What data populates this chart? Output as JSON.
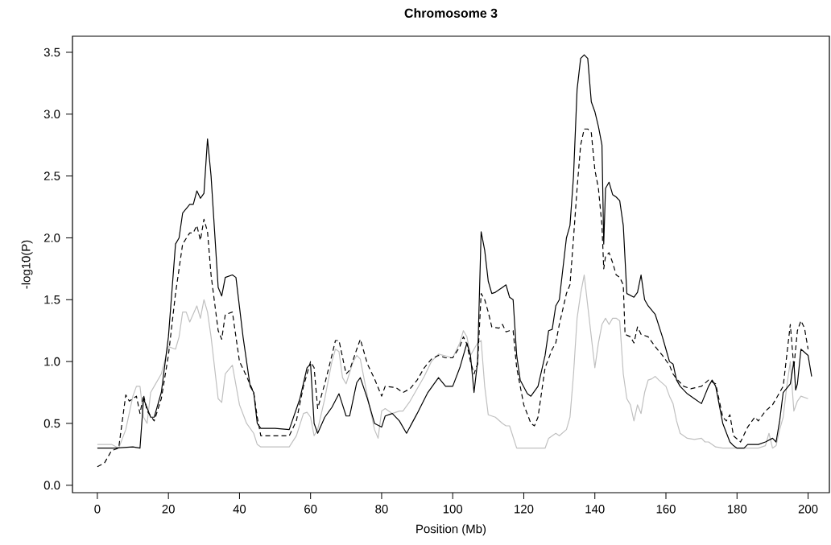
{
  "chart_data": {
    "type": "line",
    "title": "Chromosome 3",
    "xlabel": "Position (Mb)",
    "ylabel": "-log10(P)",
    "xlim": [
      -7,
      206
    ],
    "ylim": [
      -0.06,
      3.63
    ],
    "xticks": [
      0,
      20,
      40,
      60,
      80,
      100,
      120,
      140,
      160,
      180,
      200
    ],
    "yticks": [
      {
        "value": 0,
        "label": "0.0"
      },
      0.5,
      {
        "value": 1,
        "label": "1.0"
      },
      1.5,
      {
        "value": 2,
        "label": "2.0"
      },
      2.5,
      {
        "value": 3,
        "label": "3.0"
      },
      3.5
    ],
    "grid": false,
    "marker": "none",
    "series": [
      {
        "color": "#c0c0c0",
        "line_style": "solid",
        "x": [
          0,
          4,
          6,
          8,
          10,
          11,
          12,
          13,
          14,
          15,
          16,
          18,
          20,
          22,
          23,
          24,
          25,
          26,
          28,
          29,
          30,
          31,
          32,
          34,
          35,
          36,
          38,
          40,
          42,
          44,
          45,
          46,
          50,
          54,
          56,
          58,
          59,
          60,
          61,
          62,
          64,
          66,
          67,
          68,
          69,
          70,
          72,
          73,
          74,
          76,
          78,
          79,
          80,
          81,
          83,
          85,
          86,
          88,
          92,
          94,
          96,
          100,
          102,
          103,
          104,
          105,
          106,
          107,
          108,
          109,
          110,
          112,
          114,
          115,
          116,
          118,
          122,
          126,
          127,
          129,
          130,
          132,
          133,
          134,
          135,
          136,
          137,
          138,
          139,
          140,
          141,
          142,
          143,
          144,
          145,
          146,
          147,
          148,
          149,
          150,
          151,
          152,
          153,
          154,
          155,
          156,
          157,
          158,
          160,
          161,
          162,
          163,
          164,
          166,
          168,
          170,
          171,
          172,
          174,
          176,
          180,
          184,
          186,
          188,
          189,
          190,
          191,
          192,
          193,
          194,
          195,
          196,
          197,
          198,
          200
        ],
        "values": [
          0.33,
          0.33,
          0.3,
          0.45,
          0.72,
          0.8,
          0.8,
          0.55,
          0.5,
          0.75,
          0.8,
          0.9,
          1.12,
          1.1,
          1.2,
          1.4,
          1.4,
          1.32,
          1.45,
          1.35,
          1.5,
          1.4,
          1.2,
          0.7,
          0.67,
          0.9,
          0.97,
          0.65,
          0.5,
          0.42,
          0.33,
          0.31,
          0.31,
          0.31,
          0.4,
          0.58,
          0.59,
          0.55,
          0.4,
          0.45,
          0.7,
          1.0,
          1.1,
          1.08,
          0.87,
          0.82,
          1.0,
          1.05,
          1.02,
          0.72,
          0.45,
          0.38,
          0.6,
          0.62,
          0.58,
          0.6,
          0.6,
          0.68,
          0.88,
          1.0,
          1.06,
          1.03,
          1.15,
          1.25,
          1.2,
          1.05,
          1.1,
          1.15,
          1.17,
          0.8,
          0.57,
          0.55,
          0.5,
          0.48,
          0.48,
          0.3,
          0.3,
          0.3,
          0.38,
          0.42,
          0.4,
          0.45,
          0.55,
          0.9,
          1.35,
          1.55,
          1.7,
          1.45,
          1.2,
          0.95,
          1.15,
          1.3,
          1.35,
          1.3,
          1.35,
          1.35,
          1.33,
          0.9,
          0.7,
          0.65,
          0.52,
          0.65,
          0.58,
          0.75,
          0.85,
          0.86,
          0.88,
          0.85,
          0.8,
          0.72,
          0.66,
          0.52,
          0.42,
          0.38,
          0.37,
          0.38,
          0.35,
          0.35,
          0.31,
          0.3,
          0.3,
          0.3,
          0.3,
          0.32,
          0.42,
          0.3,
          0.32,
          0.45,
          0.55,
          0.8,
          1.0,
          0.6,
          0.68,
          0.72,
          0.7
        ]
      },
      {
        "color": "#000000",
        "line_style": "dashed",
        "x": [
          0,
          2,
          4,
          6,
          8,
          9,
          10,
          11,
          12,
          13,
          14,
          16,
          18,
          20,
          22,
          24,
          26,
          27,
          28,
          29,
          30,
          31,
          32,
          34,
          35,
          36,
          38,
          40,
          42,
          44,
          45,
          46,
          50,
          54,
          56,
          58,
          60,
          61,
          62,
          64,
          66,
          67,
          68,
          70,
          71,
          73,
          74,
          76,
          78,
          80,
          81,
          84,
          86,
          88,
          90,
          92,
          94,
          96,
          98,
          100,
          102,
          103,
          104,
          105,
          106,
          107,
          108,
          109,
          110,
          111,
          113,
          114,
          115,
          116,
          117,
          118,
          120,
          122,
          123,
          124,
          126,
          128,
          129,
          130,
          132,
          133,
          134,
          135,
          136,
          137,
          138,
          139,
          140,
          141,
          142,
          142.5,
          143,
          144,
          145,
          146,
          147,
          148,
          148.5,
          150,
          151,
          152,
          153,
          155,
          157,
          159,
          161,
          162,
          163,
          165,
          167,
          170,
          172,
          174,
          176,
          177,
          178,
          179,
          181,
          183,
          185,
          186,
          188,
          190,
          191,
          193,
          194,
          195,
          196,
          197,
          198,
          199,
          200
        ],
        "values": [
          0.15,
          0.18,
          0.28,
          0.3,
          0.73,
          0.68,
          0.7,
          0.72,
          0.58,
          0.73,
          0.6,
          0.52,
          0.7,
          1.05,
          1.55,
          1.95,
          2.04,
          2.04,
          2.1,
          1.98,
          2.15,
          2.05,
          1.7,
          1.25,
          1.18,
          1.38,
          1.4,
          1.0,
          0.88,
          0.75,
          0.55,
          0.4,
          0.4,
          0.4,
          0.52,
          0.8,
          1.0,
          0.95,
          0.62,
          0.82,
          1.05,
          1.17,
          1.17,
          0.9,
          0.93,
          1.1,
          1.18,
          0.98,
          0.86,
          0.72,
          0.8,
          0.79,
          0.75,
          0.78,
          0.85,
          0.95,
          1.02,
          1.05,
          1.03,
          1.03,
          1.12,
          1.2,
          1.14,
          1.0,
          0.9,
          0.98,
          1.55,
          1.5,
          1.4,
          1.28,
          1.27,
          1.3,
          1.24,
          1.25,
          1.25,
          0.95,
          0.65,
          0.5,
          0.48,
          0.55,
          0.95,
          1.1,
          1.15,
          1.3,
          1.55,
          1.62,
          2.0,
          2.4,
          2.75,
          2.88,
          2.88,
          2.85,
          2.55,
          2.4,
          2.1,
          1.75,
          1.85,
          1.88,
          1.8,
          1.7,
          1.68,
          1.62,
          1.22,
          1.2,
          1.15,
          1.28,
          1.22,
          1.2,
          1.12,
          1.05,
          0.97,
          0.9,
          0.86,
          0.8,
          0.78,
          0.8,
          0.85,
          0.82,
          0.55,
          0.52,
          0.57,
          0.4,
          0.35,
          0.47,
          0.55,
          0.52,
          0.6,
          0.65,
          0.7,
          0.8,
          1.05,
          1.3,
          0.95,
          1.25,
          1.33,
          1.27,
          1.1
        ]
      },
      {
        "color": "#000000",
        "line_style": "solid",
        "x": [
          0,
          5,
          10,
          12,
          13,
          15,
          16,
          18,
          20,
          22,
          23,
          24,
          26,
          27,
          28,
          29,
          30,
          31,
          32,
          34,
          35,
          36,
          38,
          39,
          41,
          43,
          44,
          45,
          46,
          50,
          54,
          57,
          59,
          60,
          61,
          62,
          64,
          66,
          68,
          70,
          71,
          73,
          74,
          76,
          78,
          80,
          81,
          83,
          85,
          87,
          90,
          93,
          96,
          98,
          100,
          102,
          103,
          104,
          105,
          106,
          107,
          108,
          109,
          110,
          111,
          112,
          114,
          115,
          116,
          117,
          118,
          119,
          121,
          122,
          124,
          126,
          127,
          128,
          129,
          130,
          132,
          133,
          134,
          135,
          136,
          137,
          138,
          139,
          140,
          141,
          142,
          142.5,
          143,
          144,
          145,
          146,
          147,
          148,
          149,
          151,
          152,
          153,
          154,
          155,
          157,
          159,
          160,
          161,
          162,
          163,
          164,
          166,
          168,
          170,
          172,
          173,
          174,
          176,
          178,
          179,
          180,
          182,
          183,
          186,
          188,
          190,
          191,
          192,
          193,
          195,
          196,
          196.5,
          197,
          198,
          200,
          201
        ],
        "values": [
          0.3,
          0.3,
          0.31,
          0.3,
          0.7,
          0.55,
          0.55,
          0.75,
          1.2,
          1.95,
          2.0,
          2.2,
          2.27,
          2.27,
          2.38,
          2.32,
          2.36,
          2.8,
          2.5,
          1.6,
          1.53,
          1.68,
          1.7,
          1.68,
          1.2,
          0.8,
          0.75,
          0.5,
          0.46,
          0.46,
          0.45,
          0.7,
          0.95,
          0.98,
          0.5,
          0.42,
          0.55,
          0.63,
          0.74,
          0.56,
          0.56,
          0.83,
          0.87,
          0.7,
          0.5,
          0.47,
          0.56,
          0.58,
          0.52,
          0.42,
          0.58,
          0.75,
          0.87,
          0.8,
          0.8,
          0.95,
          1.05,
          1.15,
          1.05,
          0.75,
          1.0,
          2.05,
          1.9,
          1.65,
          1.55,
          1.56,
          1.6,
          1.62,
          1.52,
          1.5,
          1.05,
          0.85,
          0.74,
          0.72,
          0.8,
          1.05,
          1.25,
          1.26,
          1.45,
          1.5,
          2.0,
          2.1,
          2.5,
          3.2,
          3.45,
          3.48,
          3.45,
          3.1,
          3.02,
          2.9,
          2.75,
          1.95,
          2.4,
          2.45,
          2.35,
          2.33,
          2.3,
          2.1,
          1.55,
          1.52,
          1.56,
          1.7,
          1.5,
          1.45,
          1.38,
          1.2,
          1.1,
          1.0,
          0.98,
          0.85,
          0.8,
          0.74,
          0.7,
          0.66,
          0.8,
          0.85,
          0.8,
          0.5,
          0.35,
          0.32,
          0.3,
          0.3,
          0.33,
          0.33,
          0.35,
          0.38,
          0.35,
          0.52,
          0.75,
          0.82,
          1.0,
          0.77,
          0.82,
          1.1,
          1.05,
          0.88
        ]
      }
    ]
  }
}
